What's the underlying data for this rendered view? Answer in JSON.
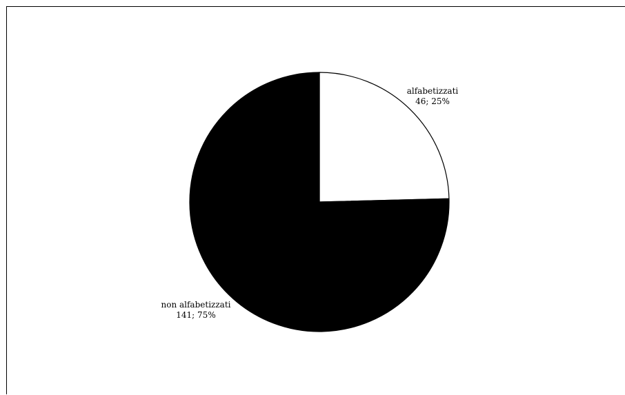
{
  "chart_data": {
    "type": "pie",
    "title": "",
    "start_angle": "12 o'clock",
    "direction": "clockwise",
    "border_color": "#000000",
    "slices": [
      {
        "label": "alfabetizzati",
        "value": 46,
        "percent_label": "46; 25%",
        "color": "#ffffff"
      },
      {
        "label": "non alfabetizzati",
        "value": 141,
        "percent_label": "141; 75%",
        "color": "#000000"
      }
    ]
  }
}
